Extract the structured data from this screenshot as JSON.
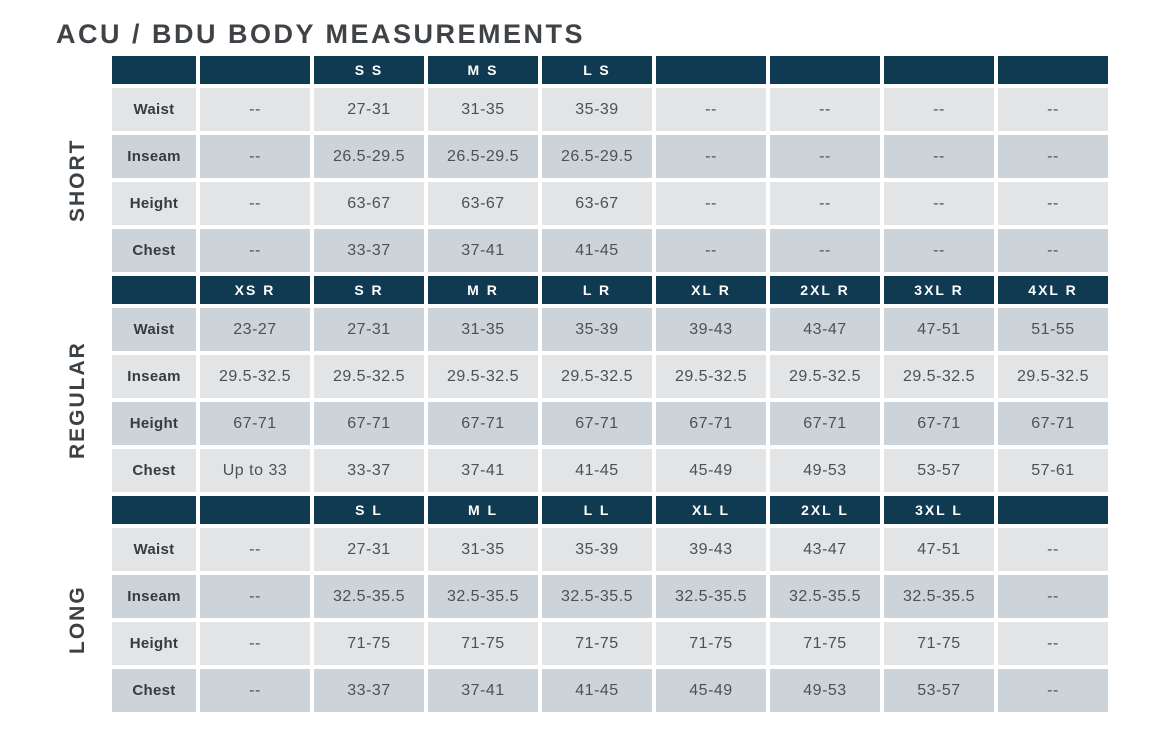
{
  "title": "ACU / BDU BODY MEASUREMENTS",
  "colors": {
    "header_bg": "#0f3a52",
    "header_text": "#ffffff",
    "row_light": "#e2e4e6",
    "row_dark": "#ccd4da",
    "title_text": "#3f4347",
    "cell_text": "#4b5156"
  },
  "chart_data": {
    "type": "table",
    "title": "ACU / BDU BODY MEASUREMENTS",
    "row_header_labels": [
      "Waist",
      "Inseam",
      "Height",
      "Chest"
    ],
    "empty_value": "--",
    "sections": [
      {
        "name": "SHORT",
        "col_headers": [
          "",
          "",
          "S S",
          "M S",
          "L S",
          "",
          "",
          "",
          ""
        ],
        "rows": [
          {
            "label": "Waist",
            "values": [
              "--",
              "27-31",
              "31-35",
              "35-39",
              "--",
              "--",
              "--",
              "--"
            ]
          },
          {
            "label": "Inseam",
            "values": [
              "--",
              "26.5-29.5",
              "26.5-29.5",
              "26.5-29.5",
              "--",
              "--",
              "--",
              "--"
            ]
          },
          {
            "label": "Height",
            "values": [
              "--",
              "63-67",
              "63-67",
              "63-67",
              "--",
              "--",
              "--",
              "--"
            ]
          },
          {
            "label": "Chest",
            "values": [
              "--",
              "33-37",
              "37-41",
              "41-45",
              "--",
              "--",
              "--",
              "--"
            ]
          }
        ]
      },
      {
        "name": "REGULAR",
        "col_headers": [
          "",
          "XS R",
          "S R",
          "M R",
          "L R",
          "XL R",
          "2XL R",
          "3XL R",
          "4XL R"
        ],
        "rows": [
          {
            "label": "Waist",
            "values": [
              "23-27",
              "27-31",
              "31-35",
              "35-39",
              "39-43",
              "43-47",
              "47-51",
              "51-55"
            ]
          },
          {
            "label": "Inseam",
            "values": [
              "29.5-32.5",
              "29.5-32.5",
              "29.5-32.5",
              "29.5-32.5",
              "29.5-32.5",
              "29.5-32.5",
              "29.5-32.5",
              "29.5-32.5"
            ]
          },
          {
            "label": "Height",
            "values": [
              "67-71",
              "67-71",
              "67-71",
              "67-71",
              "67-71",
              "67-71",
              "67-71",
              "67-71"
            ]
          },
          {
            "label": "Chest",
            "values": [
              "Up to 33",
              "33-37",
              "37-41",
              "41-45",
              "45-49",
              "49-53",
              "53-57",
              "57-61"
            ]
          }
        ]
      },
      {
        "name": "LONG",
        "col_headers": [
          "",
          "",
          "S L",
          "M L",
          "L L",
          "XL L",
          "2XL L",
          "3XL L",
          ""
        ],
        "rows": [
          {
            "label": "Waist",
            "values": [
              "--",
              "27-31",
              "31-35",
              "35-39",
              "39-43",
              "43-47",
              "47-51",
              "--"
            ]
          },
          {
            "label": "Inseam",
            "values": [
              "--",
              "32.5-35.5",
              "32.5-35.5",
              "32.5-35.5",
              "32.5-35.5",
              "32.5-35.5",
              "32.5-35.5",
              "--"
            ]
          },
          {
            "label": "Height",
            "values": [
              "--",
              "71-75",
              "71-75",
              "71-75",
              "71-75",
              "71-75",
              "71-75",
              "--"
            ]
          },
          {
            "label": "Chest",
            "values": [
              "--",
              "33-37",
              "37-41",
              "41-45",
              "45-49",
              "49-53",
              "53-57",
              "--"
            ]
          }
        ]
      }
    ]
  }
}
